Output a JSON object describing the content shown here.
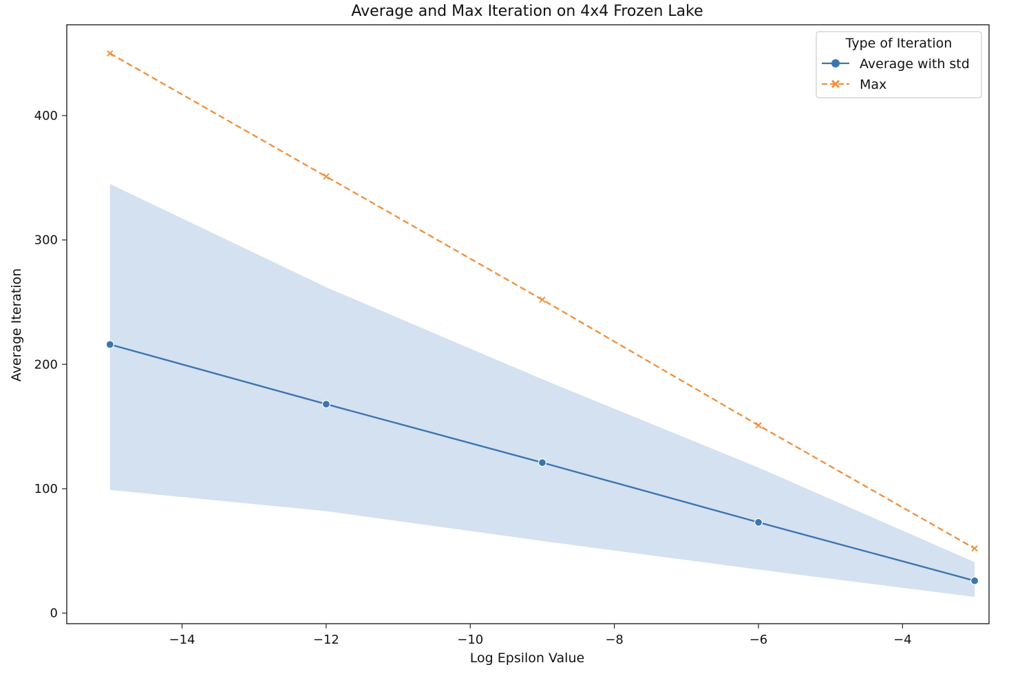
{
  "chart_data": {
    "type": "line",
    "title": "Average and Max Iteration on 4x4 Frozen Lake",
    "xlabel": "Log Epsilon Value",
    "ylabel": "Average Iteration",
    "xlim": [
      -15.6,
      -2.8
    ],
    "ylim": [
      -8.5,
      473
    ],
    "xticks": [
      -14,
      -12,
      -10,
      -8,
      -6,
      -4
    ],
    "xtick_labels": [
      "−14",
      "−12",
      "−10",
      "−8",
      "−6",
      "−4"
    ],
    "yticks": [
      0,
      100,
      200,
      300,
      400
    ],
    "ytick_labels": [
      "0",
      "100",
      "200",
      "300",
      "400"
    ],
    "x": [
      -15,
      -12,
      -9,
      -6,
      -3
    ],
    "legend": {
      "title": "Type of Iteration",
      "position": "top-right"
    },
    "series": [
      {
        "name": "Average with std",
        "values": [
          216,
          168,
          121,
          73,
          26
        ],
        "band_lower": [
          99,
          82,
          58,
          35,
          13
        ],
        "band_upper": [
          345,
          262,
          188,
          117,
          41
        ],
        "color": "#3a75b0",
        "band_color": "#c9d9ec",
        "marker": "circle",
        "linestyle": "solid"
      },
      {
        "name": "Max",
        "values": [
          450,
          351,
          252,
          151,
          52
        ],
        "color": "#f0913f",
        "marker": "x",
        "linestyle": "dashed"
      }
    ],
    "grid": false
  }
}
